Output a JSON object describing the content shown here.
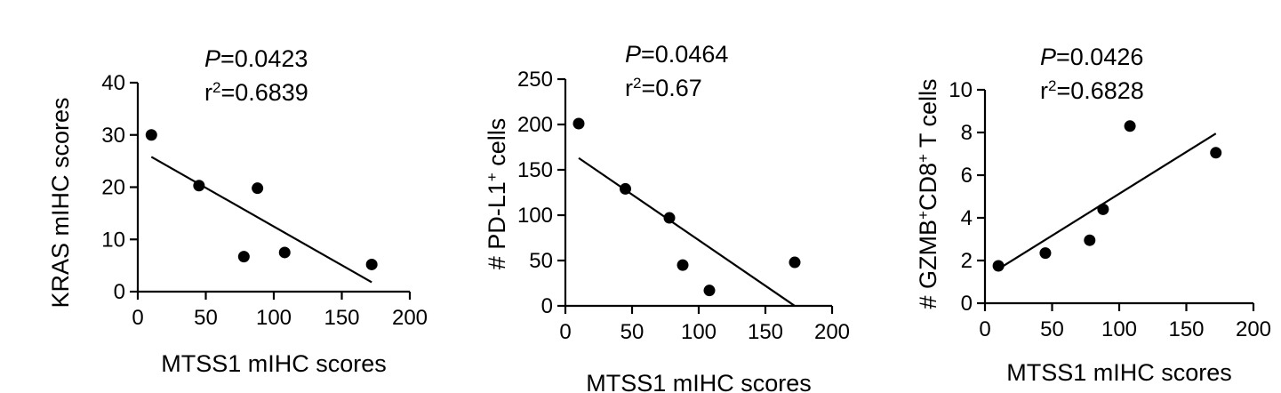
{
  "colors": {
    "ink": "#000000",
    "background": "#ffffff"
  },
  "chart_data": [
    {
      "type": "scatter",
      "title": "",
      "p_prefix": "P",
      "p_value": "=0.0423",
      "r2_prefix": "r",
      "r2_sup": "2",
      "r2_value": "=0.6839",
      "xlabel": "MTSS1 mIHC scores",
      "ylabel": "KRAS mIHC scores",
      "xlim": [
        0,
        200
      ],
      "ylim": [
        0,
        40
      ],
      "xticks": [
        0,
        50,
        100,
        150,
        200
      ],
      "yticks": [
        0,
        10,
        20,
        30,
        40
      ],
      "grid": false,
      "points": [
        {
          "x": 10,
          "y": 30
        },
        {
          "x": 45,
          "y": 20.3
        },
        {
          "x": 78,
          "y": 6.7
        },
        {
          "x": 88,
          "y": 19.8
        },
        {
          "x": 108,
          "y": 7.5
        },
        {
          "x": 172,
          "y": 5.2
        }
      ],
      "fit_line": [
        {
          "x": 10,
          "y": 25.8
        },
        {
          "x": 172,
          "y": 1.8
        }
      ]
    },
    {
      "type": "scatter",
      "title": "",
      "p_prefix": "P",
      "p_value": "=0.0464",
      "r2_prefix": "r",
      "r2_sup": "2",
      "r2_value": "=0.67",
      "xlabel": "MTSS1 mIHC scores",
      "ylabel_main": "# PD-L1",
      "ylabel_sup": "+",
      "ylabel_tail": " cells",
      "xlim": [
        0,
        200
      ],
      "ylim": [
        0,
        250
      ],
      "xticks": [
        0,
        50,
        100,
        150,
        200
      ],
      "yticks": [
        0,
        50,
        100,
        150,
        200,
        250
      ],
      "grid": false,
      "points": [
        {
          "x": 10,
          "y": 201
        },
        {
          "x": 45,
          "y": 129
        },
        {
          "x": 78,
          "y": 97
        },
        {
          "x": 88,
          "y": 45
        },
        {
          "x": 108,
          "y": 17
        },
        {
          "x": 172,
          "y": 48
        }
      ],
      "fit_line": [
        {
          "x": 10,
          "y": 163
        },
        {
          "x": 172,
          "y": 0
        }
      ]
    },
    {
      "type": "scatter",
      "title": "",
      "p_prefix": "P",
      "p_value": "=0.0426",
      "r2_prefix": "r",
      "r2_sup": "2",
      "r2_value": "=0.6828",
      "xlabel": "MTSS1 mIHC scores",
      "ylabel_parts": [
        {
          "text": "# GZMB",
          "sup": false
        },
        {
          "text": "+",
          "sup": true
        },
        {
          "text": "CD8",
          "sup": false
        },
        {
          "text": "+",
          "sup": true
        },
        {
          "text": " T cells",
          "sup": false
        }
      ],
      "xlim": [
        0,
        200
      ],
      "ylim": [
        0,
        10
      ],
      "xticks": [
        0,
        50,
        100,
        150,
        200
      ],
      "yticks": [
        0,
        2,
        4,
        6,
        8,
        10
      ],
      "grid": false,
      "points": [
        {
          "x": 10,
          "y": 1.75
        },
        {
          "x": 45,
          "y": 2.35
        },
        {
          "x": 78,
          "y": 2.95
        },
        {
          "x": 88,
          "y": 4.4
        },
        {
          "x": 108,
          "y": 8.3
        },
        {
          "x": 172,
          "y": 7.05
        }
      ],
      "fit_line": [
        {
          "x": 10,
          "y": 1.6
        },
        {
          "x": 172,
          "y": 7.95
        }
      ]
    }
  ]
}
